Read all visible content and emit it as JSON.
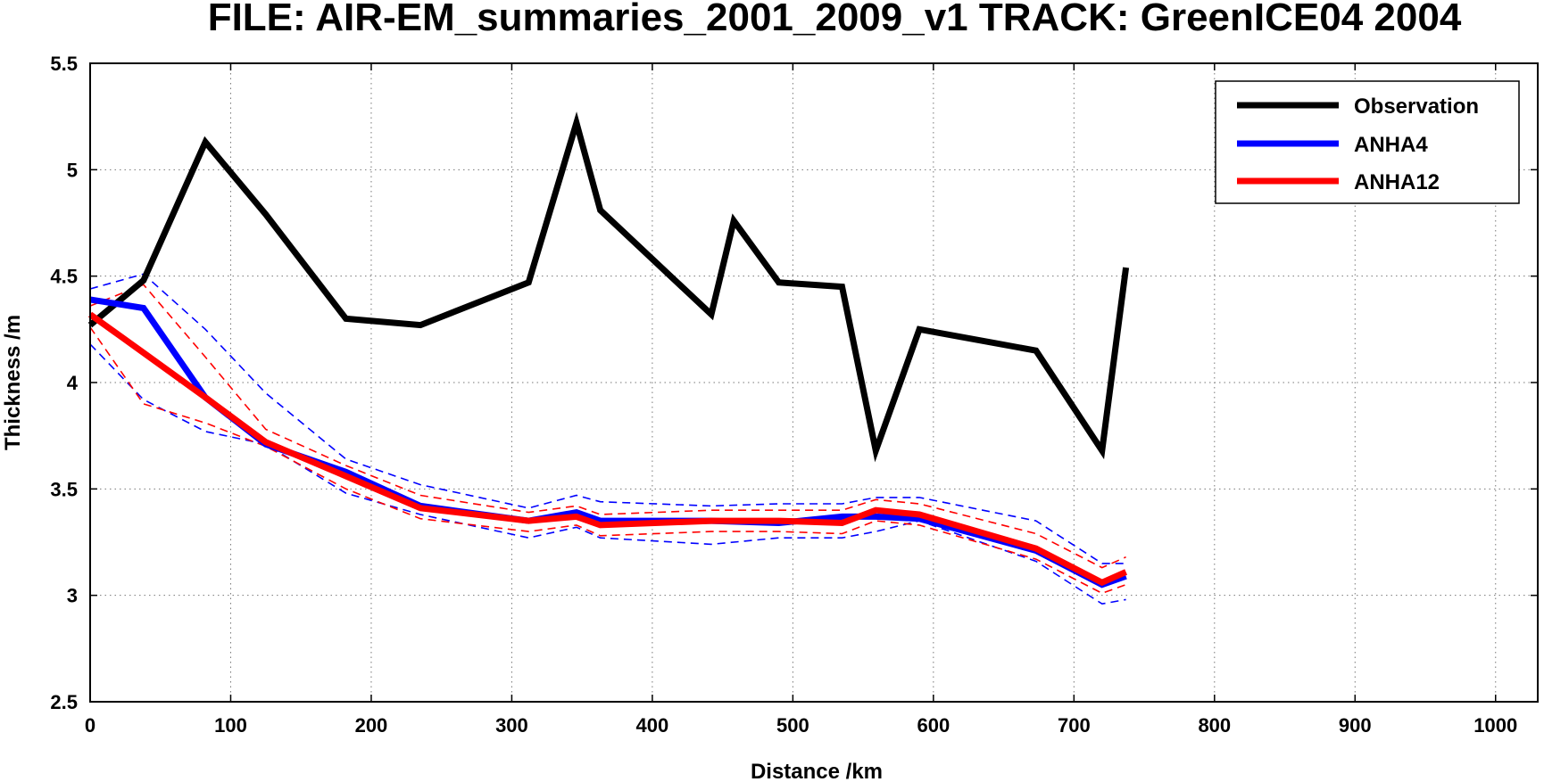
{
  "chart_data": {
    "type": "line",
    "title": "FILE: AIR-EM_summaries_2001_2009_v1 TRACK: GreenICE04 2004",
    "xlabel": "Distance /km",
    "ylabel": "Thickness /m",
    "xlim": [
      0,
      1030
    ],
    "ylim": [
      2.5,
      5.5
    ],
    "xticks": [
      0,
      100,
      200,
      300,
      400,
      500,
      600,
      700,
      800,
      900,
      1000
    ],
    "yticks": [
      2.5,
      3,
      3.5,
      4,
      4.5,
      5,
      5.5
    ],
    "xtick_labels": [
      "0",
      "100",
      "200",
      "300",
      "400",
      "500",
      "600",
      "700",
      "800",
      "900",
      "1000"
    ],
    "ytick_labels": [
      "2.5",
      "3",
      "3.5",
      "4",
      "4.5",
      "5",
      "5.5"
    ],
    "grid": true,
    "legend_position": "top-right",
    "series": [
      {
        "name": "Observation",
        "color": "#000000",
        "style": "solid",
        "x": [
          0,
          38,
          82,
          125,
          182,
          235,
          312,
          346,
          363,
          442,
          458,
          490,
          535,
          559,
          590,
          673,
          720,
          737
        ],
        "y": [
          4.27,
          4.48,
          5.13,
          4.79,
          4.3,
          4.27,
          4.47,
          5.22,
          4.81,
          4.32,
          4.76,
          4.47,
          4.45,
          3.68,
          4.25,
          4.15,
          3.68,
          4.54
        ]
      },
      {
        "name": "ANHA4",
        "color": "#0000ff",
        "style": "solid",
        "x": [
          0,
          38,
          82,
          125,
          182,
          235,
          312,
          346,
          363,
          442,
          490,
          535,
          559,
          590,
          673,
          720,
          737
        ],
        "y": [
          4.39,
          4.35,
          3.93,
          3.71,
          3.58,
          3.42,
          3.35,
          3.39,
          3.35,
          3.35,
          3.34,
          3.37,
          3.37,
          3.36,
          3.21,
          3.05,
          3.09
        ]
      },
      {
        "name": "ANHA12",
        "color": "#ff0000",
        "style": "solid",
        "x": [
          0,
          38,
          82,
          125,
          182,
          235,
          312,
          346,
          363,
          442,
          490,
          535,
          559,
          590,
          673,
          720,
          737
        ],
        "y": [
          4.32,
          4.14,
          3.93,
          3.72,
          3.56,
          3.41,
          3.35,
          3.37,
          3.33,
          3.35,
          3.35,
          3.34,
          3.4,
          3.38,
          3.22,
          3.06,
          3.11
        ]
      },
      {
        "color": "#0000ff",
        "style": "dashed",
        "x": [
          0,
          38,
          82,
          125,
          182,
          235,
          312,
          346,
          363,
          442,
          490,
          535,
          559,
          590,
          673,
          720,
          737
        ],
        "y": [
          4.44,
          4.51,
          4.25,
          3.95,
          3.64,
          3.52,
          3.41,
          3.47,
          3.44,
          3.42,
          3.43,
          3.43,
          3.46,
          3.46,
          3.35,
          3.15,
          3.15
        ]
      },
      {
        "color": "#0000ff",
        "style": "dashed",
        "x": [
          0,
          38,
          82,
          125,
          182,
          235,
          312,
          346,
          363,
          442,
          490,
          535,
          559,
          590,
          673,
          720,
          737
        ],
        "y": [
          4.18,
          3.92,
          3.77,
          3.71,
          3.48,
          3.38,
          3.27,
          3.32,
          3.27,
          3.24,
          3.27,
          3.27,
          3.3,
          3.35,
          3.16,
          2.96,
          2.98
        ]
      },
      {
        "color": "#ff0000",
        "style": "dashed",
        "x": [
          0,
          38,
          82,
          125,
          182,
          235,
          312,
          346,
          363,
          442,
          490,
          535,
          559,
          590,
          673,
          720,
          737
        ],
        "y": [
          4.36,
          4.46,
          4.12,
          3.78,
          3.61,
          3.47,
          3.39,
          3.42,
          3.38,
          3.4,
          3.4,
          3.4,
          3.45,
          3.43,
          3.29,
          3.13,
          3.18
        ]
      },
      {
        "color": "#ff0000",
        "style": "dashed",
        "x": [
          0,
          38,
          82,
          125,
          182,
          235,
          312,
          346,
          363,
          442,
          490,
          535,
          559,
          590,
          673,
          720,
          737
        ],
        "y": [
          4.26,
          3.9,
          3.81,
          3.7,
          3.5,
          3.36,
          3.3,
          3.33,
          3.28,
          3.3,
          3.3,
          3.29,
          3.35,
          3.33,
          3.17,
          3.01,
          3.05
        ]
      }
    ]
  }
}
